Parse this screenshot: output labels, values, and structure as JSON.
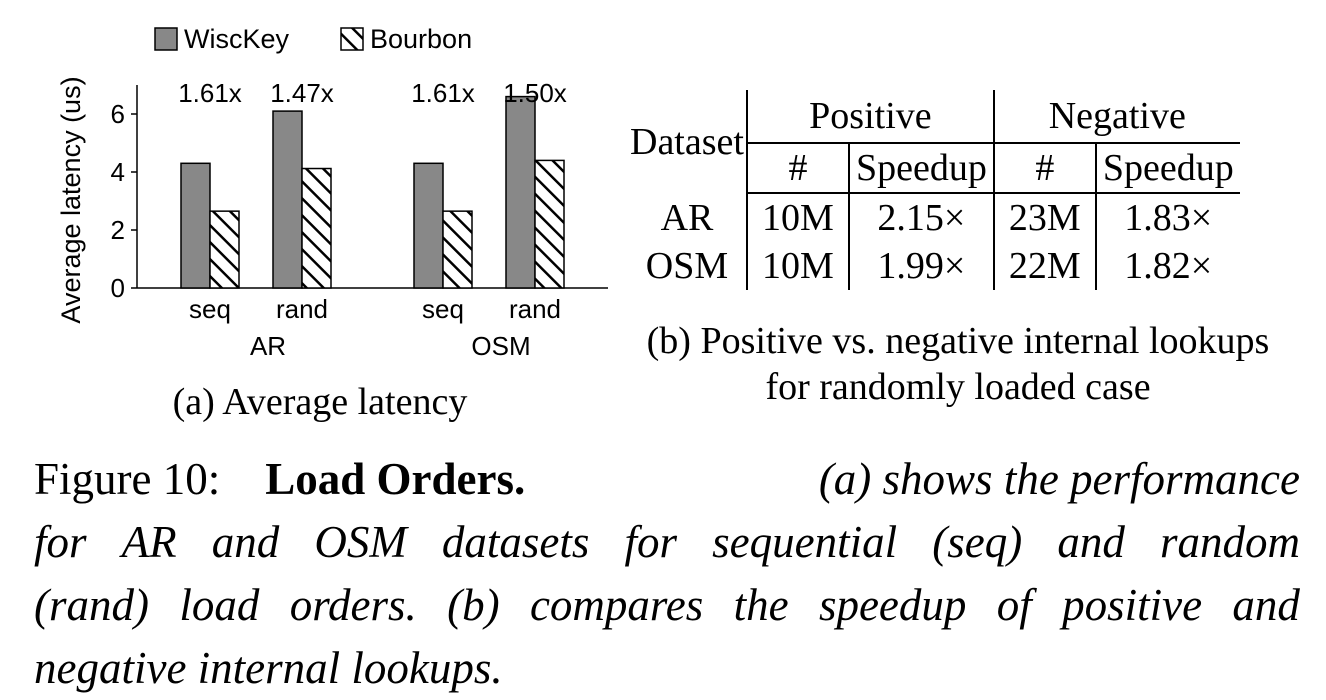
{
  "chart_data": {
    "type": "bar",
    "ylabel": "Average latency (us)",
    "ylim": [
      0,
      7
    ],
    "yticks": [
      0,
      2,
      4,
      6
    ],
    "groups": [
      {
        "name": "AR",
        "categories": [
          "seq",
          "rand"
        ]
      },
      {
        "name": "OSM",
        "categories": [
          "seq",
          "rand"
        ]
      }
    ],
    "categories": [
      "seq",
      "rand",
      "seq",
      "rand"
    ],
    "series": [
      {
        "name": "WiscKey",
        "values": [
          4.3,
          6.1,
          4.3,
          6.6
        ],
        "color": "#888888"
      },
      {
        "name": "Bourbon",
        "values": [
          2.65,
          4.12,
          2.65,
          4.4
        ],
        "color": "#ffffff",
        "pattern": "diagonal-hatch"
      }
    ],
    "annotations": [
      "1.61x",
      "1.47x",
      "1.61x",
      "1.50x"
    ],
    "legend_position": "top",
    "grid": false
  },
  "caption_a": "(a) Average latency",
  "table": {
    "header_dataset": "Dataset",
    "header_positive": "Positive",
    "header_negative": "Negative",
    "sub_count": "#",
    "sub_speedup": "Speedup",
    "rows": [
      {
        "dataset": "AR",
        "pos_count": "10M",
        "pos_speedup": "2.15×",
        "neg_count": "23M",
        "neg_speedup": "1.83×"
      },
      {
        "dataset": "OSM",
        "pos_count": "10M",
        "pos_speedup": "1.99×",
        "neg_count": "22M",
        "neg_speedup": "1.82×"
      }
    ]
  },
  "caption_b": {
    "line1": "(b) Positive vs. negative internal lookups",
    "line2": "for randomly loaded case"
  },
  "figure_caption": {
    "label": "Figure 10:",
    "bold": "Load Orders.",
    "line1_rest": "(a) shows the performance",
    "line2": "for AR and OSM datasets for sequential (seq) and random",
    "line3": "(rand) load orders. (b) compares the speedup of positive and",
    "line4": "negative internal lookups."
  }
}
